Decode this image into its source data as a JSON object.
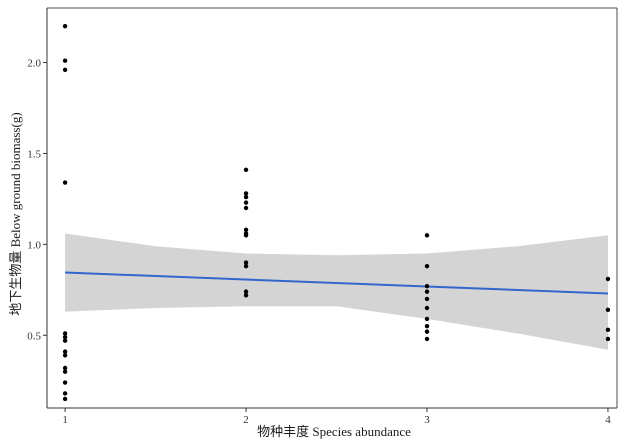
{
  "chart_data": {
    "type": "scatter",
    "title": "",
    "xlabel": "物种丰度 Species abundance",
    "ylabel": "地下生物量 Below ground biomass(g)",
    "xlim": [
      0.9,
      4.05
    ],
    "ylim": [
      0.1,
      2.3
    ],
    "x_ticks": [
      1,
      2,
      3,
      4
    ],
    "y_ticks": [
      0.5,
      1.0,
      1.5,
      2.0
    ],
    "x_tick_labels": [
      "1",
      "2",
      "3",
      "4"
    ],
    "y_tick_labels": [
      "0.5",
      "1.0",
      "1.5",
      "2.0"
    ],
    "grid": false,
    "legend": "none",
    "points": [
      {
        "x": 1,
        "y": 2.2
      },
      {
        "x": 1,
        "y": 2.01
      },
      {
        "x": 1,
        "y": 1.96
      },
      {
        "x": 1,
        "y": 1.34
      },
      {
        "x": 1,
        "y": 0.51
      },
      {
        "x": 1,
        "y": 0.49
      },
      {
        "x": 1,
        "y": 0.47
      },
      {
        "x": 1,
        "y": 0.41
      },
      {
        "x": 1,
        "y": 0.39
      },
      {
        "x": 1,
        "y": 0.32
      },
      {
        "x": 1,
        "y": 0.3
      },
      {
        "x": 1,
        "y": 0.24
      },
      {
        "x": 1,
        "y": 0.18
      },
      {
        "x": 1,
        "y": 0.15
      },
      {
        "x": 2,
        "y": 1.41
      },
      {
        "x": 2,
        "y": 1.28
      },
      {
        "x": 2,
        "y": 1.26
      },
      {
        "x": 2,
        "y": 1.23
      },
      {
        "x": 2,
        "y": 1.2
      },
      {
        "x": 2,
        "y": 1.08
      },
      {
        "x": 2,
        "y": 1.06
      },
      {
        "x": 2,
        "y": 1.05
      },
      {
        "x": 2,
        "y": 0.9
      },
      {
        "x": 2,
        "y": 0.88
      },
      {
        "x": 2,
        "y": 0.74
      },
      {
        "x": 2,
        "y": 0.72
      },
      {
        "x": 3,
        "y": 1.05
      },
      {
        "x": 3,
        "y": 0.88
      },
      {
        "x": 3,
        "y": 0.77
      },
      {
        "x": 3,
        "y": 0.74
      },
      {
        "x": 3,
        "y": 0.7
      },
      {
        "x": 3,
        "y": 0.65
      },
      {
        "x": 3,
        "y": 0.59
      },
      {
        "x": 3,
        "y": 0.55
      },
      {
        "x": 3,
        "y": 0.52
      },
      {
        "x": 3,
        "y": 0.48
      },
      {
        "x": 4,
        "y": 0.81
      },
      {
        "x": 4,
        "y": 0.64
      },
      {
        "x": 4,
        "y": 0.53
      },
      {
        "x": 4,
        "y": 0.48
      }
    ],
    "trend": {
      "method": "linear",
      "x": [
        1,
        4
      ],
      "y": [
        0.845,
        0.73
      ]
    },
    "confidence_band": {
      "x": [
        1,
        1.5,
        2,
        2.5,
        3,
        3.5,
        4
      ],
      "upper": [
        1.06,
        0.99,
        0.95,
        0.94,
        0.95,
        0.99,
        1.05
      ],
      "lower": [
        0.63,
        0.65,
        0.66,
        0.66,
        0.59,
        0.51,
        0.42
      ]
    },
    "colors": {
      "points": "#000000",
      "trend": "#3366cc",
      "band": "#d4d4d4",
      "axis": "#333333",
      "frame": "#4d4d4d"
    }
  }
}
